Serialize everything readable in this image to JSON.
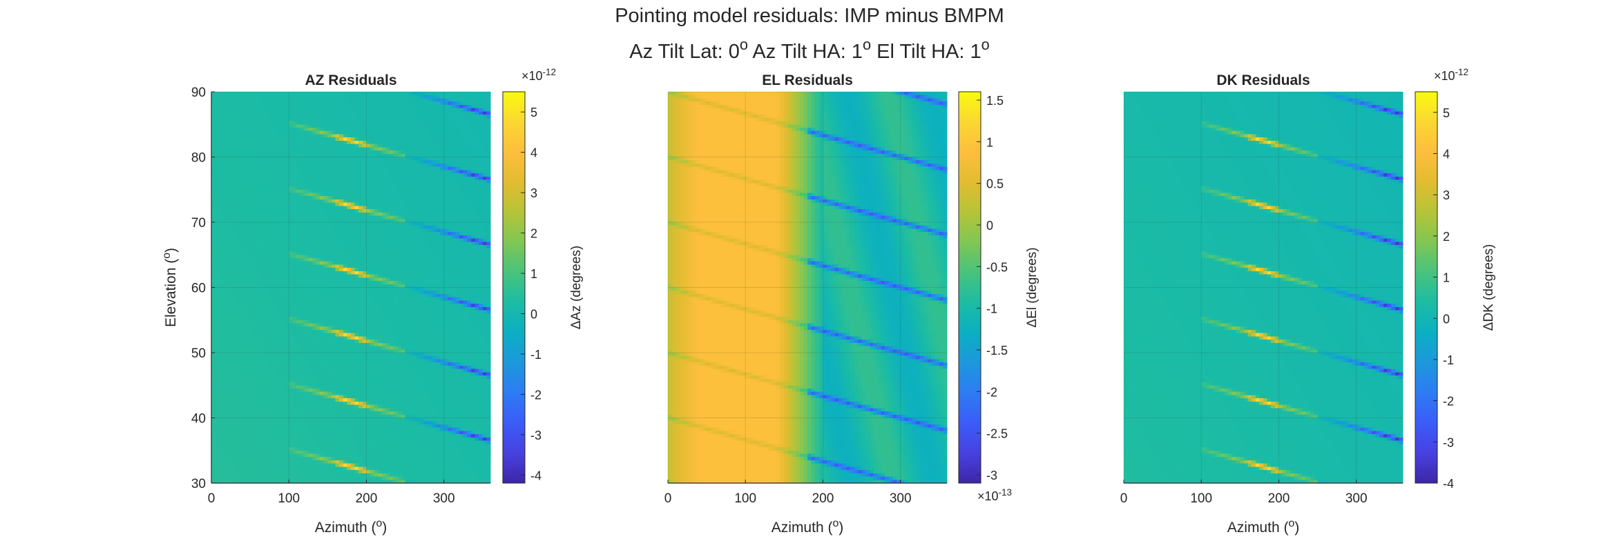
{
  "figure": {
    "title_line1": "Pointing model residuals: IMP minus BMPM",
    "title_line2_parts": [
      "Az Tilt Lat: 0",
      "o",
      " Az Tilt HA: 1",
      "o",
      " El Tilt HA: 1",
      "o"
    ]
  },
  "colormap": [
    "#3e26a8",
    "#4741e0",
    "#3b5cf8",
    "#2d7cf3",
    "#1d98dc",
    "#0bafc2",
    "#1cbca3",
    "#48c37d",
    "#80c654",
    "#b5c438",
    "#e2bc31",
    "#fdbe3d",
    "#fbd732",
    "#f9fb0e"
  ],
  "chart_data": [
    {
      "type": "heatmap",
      "title": "AZ Residuals",
      "xlabel_parts": [
        "Azimuth (",
        "o",
        ")"
      ],
      "ylabel_parts": [
        "Elevation (",
        "o",
        ")"
      ],
      "xlim": [
        0,
        360
      ],
      "ylim": [
        30,
        90
      ],
      "xticks": [
        0,
        100,
        200,
        300
      ],
      "xtick_labels": [
        "0",
        "100",
        "200",
        "300"
      ],
      "yticks": [
        30,
        40,
        50,
        60,
        70,
        80,
        90
      ],
      "ytick_labels": [
        "30",
        "40",
        "50",
        "60",
        "70",
        "80",
        "90"
      ],
      "grid": true,
      "colorbar": {
        "label": "ΔAz (degrees)",
        "exponent_label": "×10",
        "exponent": "-12",
        "exponent_position": "top",
        "clim": [
          -4.2,
          5.5
        ],
        "ticks": [
          -4,
          -3,
          -2,
          -1,
          0,
          1,
          2,
          3,
          4,
          5
        ],
        "tick_labels": [
          "-4",
          "-3",
          "-2",
          "-1",
          "0",
          "1",
          "2",
          "3",
          "4",
          "5"
        ]
      },
      "pattern": {
        "background_value": 0.2,
        "band_period_deg": 10,
        "stripe_slope_deg_per_deg": -0.0333,
        "positive_peak_value": 5.2,
        "negative_peak_value": -4.1
      }
    },
    {
      "type": "heatmap",
      "title": "EL Residuals",
      "xlabel_parts": [
        "Azimuth (",
        "o",
        ")"
      ],
      "ylabel_parts": [],
      "xlim": [
        0,
        360
      ],
      "ylim": [
        30,
        90
      ],
      "xticks": [
        0,
        100,
        200,
        300
      ],
      "xtick_labels": [
        "0",
        "100",
        "200",
        "300"
      ],
      "yticks": [],
      "ytick_labels": [],
      "grid": true,
      "colorbar": {
        "label": "ΔEl (degrees)",
        "exponent_label": "×10",
        "exponent": "-13",
        "exponent_position": "bottom",
        "clim": [
          -3.1,
          1.6
        ],
        "ticks": [
          -3,
          -2.5,
          -2,
          -1.5,
          -1,
          -0.5,
          0,
          0.5,
          1,
          1.5
        ],
        "tick_labels": [
          "-3",
          "-2.5",
          "-2",
          "-1.5",
          "-1",
          "-0.5",
          "0",
          "0.5",
          "1",
          "1.5"
        ]
      },
      "pattern": {
        "left_value": 0.3,
        "plateau_value": 0.9,
        "right_value": -1.0,
        "band_period_deg": 10,
        "stripe_slope_deg_per_deg": -0.0333,
        "negative_peak_value": -2.8
      }
    },
    {
      "type": "heatmap",
      "title": "DK Residuals",
      "xlabel_parts": [
        "Azimuth (",
        "o",
        ")"
      ],
      "ylabel_parts": [],
      "xlim": [
        0,
        360
      ],
      "ylim": [
        30,
        90
      ],
      "xticks": [
        0,
        100,
        200,
        300
      ],
      "xtick_labels": [
        "0",
        "100",
        "200",
        "300"
      ],
      "yticks": [],
      "ytick_labels": [],
      "grid": true,
      "colorbar": {
        "label": "ΔDK (degrees)",
        "exponent_label": "×10",
        "exponent": "-12",
        "exponent_position": "top",
        "clim": [
          -4.0,
          5.5
        ],
        "ticks": [
          -4,
          -3,
          -2,
          -1,
          0,
          1,
          2,
          3,
          4,
          5
        ],
        "tick_labels": [
          "-4",
          "-3",
          "-2",
          "-1",
          "0",
          "1",
          "2",
          "3",
          "4",
          "5"
        ]
      },
      "pattern": {
        "background_value": 0.2,
        "band_period_deg": 10,
        "stripe_slope_deg_per_deg": -0.0333,
        "positive_peak_value": 5.2,
        "negative_peak_value": -4.0
      }
    }
  ]
}
